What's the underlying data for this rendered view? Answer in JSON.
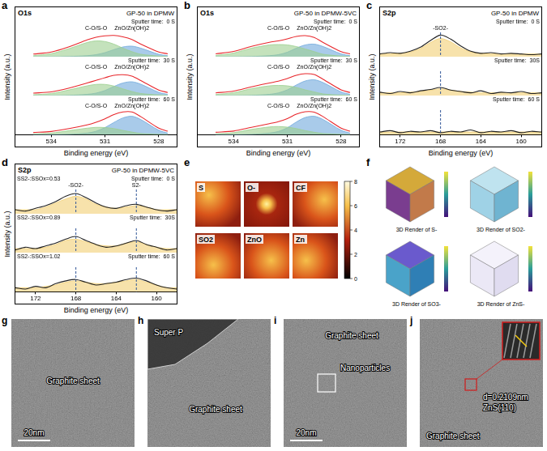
{
  "chart_data": [
    {
      "panel": "a",
      "type": "line",
      "title": "O1s",
      "subtitle": "GP-50 in DPMW",
      "x_label": "Binding energy (eV)",
      "y_label": "Intensity (a.u.)",
      "tick_labels": "x",
      "x": [
        535,
        534,
        533,
        532,
        531.5,
        531,
        530.5,
        530,
        529.5,
        529,
        528,
        527.5
      ],
      "xlim": [
        536,
        527
      ],
      "xticks": [
        534,
        531,
        528
      ],
      "spectra": [
        {
          "label": "Sputter time:  0 S",
          "ylim": [
            0,
            120
          ],
          "series": [
            {
              "name": "C-O/S-O",
              "type": "area",
              "color": "#9ccf8f",
              "values": [
                5,
                15,
                40,
                70,
                78,
                75,
                62,
                42,
                25,
                12,
                3,
                1
              ]
            },
            {
              "name": "ZnO/Zn(OH)2",
              "type": "area",
              "color": "#6fa8dc",
              "values": [
                0,
                0,
                1,
                5,
                10,
                20,
                35,
                48,
                52,
                42,
                12,
                5
              ]
            },
            {
              "type": "line",
              "color": "#e8262b",
              "values": [
                13,
                23,
                49,
                83,
                96,
                103,
                105,
                98,
                85,
                62,
                23,
                14
              ]
            }
          ]
        },
        {
          "label": "Sputter time:  30 S",
          "ylim": [
            0,
            120
          ],
          "series": [
            {
              "name": "C-O/S-O",
              "type": "area",
              "color": "#9ccf8f",
              "values": [
                4,
                10,
                28,
                48,
                55,
                55,
                47,
                33,
                20,
                10,
                3,
                1
              ]
            },
            {
              "name": "ZnO/Zn(OH)2",
              "type": "area",
              "color": "#6fa8dc",
              "values": [
                0,
                0,
                1,
                6,
                12,
                25,
                45,
                62,
                68,
                56,
                16,
                6
              ]
            },
            {
              "type": "line",
              "color": "#e8262b",
              "values": [
                12,
                18,
                37,
                62,
                75,
                88,
                100,
                103,
                96,
                74,
                27,
                15
              ]
            }
          ]
        },
        {
          "label": "Sputter time:  60 S",
          "ylim": [
            0,
            120
          ],
          "series": [
            {
              "name": "C-O/S-O",
              "type": "area",
              "color": "#9ccf8f",
              "values": [
                3,
                8,
                20,
                32,
                36,
                35,
                30,
                21,
                13,
                6,
                2,
                1
              ]
            },
            {
              "name": "ZnO/Zn(OH)2",
              "type": "area",
              "color": "#6fa8dc",
              "values": [
                0,
                0,
                2,
                8,
                17,
                35,
                60,
                82,
                90,
                74,
                22,
                8
              ]
            },
            {
              "type": "line",
              "color": "#e8262b",
              "values": [
                11,
                16,
                30,
                48,
                61,
                78,
                98,
                111,
                111,
                88,
                32,
                17
              ]
            }
          ]
        }
      ]
    },
    {
      "panel": "b",
      "type": "line",
      "title": "O1s",
      "subtitle": "GP-50 in DPMW-5VC",
      "x_label": "Binding energy (eV)",
      "y_label": "Intensity (a.u.)",
      "tick_labels": "x",
      "x": [
        535,
        534,
        533,
        532,
        531.5,
        531,
        530.5,
        530,
        529.5,
        529,
        528,
        527.5
      ],
      "xlim": [
        536,
        527
      ],
      "xticks": [
        534,
        531,
        528
      ],
      "spectra": [
        {
          "label": "Sputter time:  0 S",
          "ylim": [
            0,
            120
          ],
          "series": [
            {
              "name": "C-O/S-O",
              "type": "area",
              "color": "#9ccf8f",
              "values": [
                6,
                18,
                42,
                58,
                60,
                58,
                50,
                38,
                25,
                12,
                3,
                1
              ]
            },
            {
              "name": "ZnO/Zn(OH)2",
              "type": "area",
              "color": "#6fa8dc",
              "values": [
                0,
                0,
                1,
                5,
                10,
                22,
                42,
                58,
                62,
                50,
                14,
                5
              ]
            },
            {
              "type": "line",
              "color": "#e8262b",
              "values": [
                14,
                26,
                51,
                71,
                78,
                88,
                100,
                104,
                95,
                70,
                25,
                14
              ]
            }
          ]
        },
        {
          "label": "Sputter time:  30 S",
          "ylim": [
            0,
            120
          ],
          "series": [
            {
              "name": "C-O/S-O",
              "type": "area",
              "color": "#9ccf8f",
              "values": [
                5,
                14,
                34,
                48,
                50,
                48,
                40,
                28,
                18,
                8,
                2,
                1
              ]
            },
            {
              "name": "ZnO/Zn(OH)2",
              "type": "area",
              "color": "#6fa8dc",
              "values": [
                0,
                0,
                1,
                6,
                13,
                28,
                52,
                72,
                78,
                64,
                18,
                6
              ]
            },
            {
              "type": "line",
              "color": "#e8262b",
              "values": [
                13,
                22,
                43,
                62,
                71,
                84,
                100,
                108,
                104,
                80,
                28,
                15
              ]
            }
          ]
        },
        {
          "label": "Sputter time:  60 S",
          "ylim": [
            0,
            120
          ],
          "series": [
            {
              "name": "C-O/S-O",
              "type": "area",
              "color": "#9ccf8f",
              "values": [
                4,
                10,
                26,
                38,
                40,
                37,
                30,
                20,
                12,
                6,
                2,
                1
              ]
            },
            {
              "name": "ZnO/Zn(OH)2",
              "type": "area",
              "color": "#6fa8dc",
              "values": [
                0,
                0,
                2,
                8,
                16,
                34,
                62,
                84,
                90,
                74,
                22,
                8
              ]
            },
            {
              "type": "line",
              "color": "#e8262b",
              "values": [
                12,
                18,
                36,
                54,
                64,
                79,
                100,
                112,
                110,
                88,
                32,
                17
              ]
            }
          ]
        }
      ]
    },
    {
      "panel": "c",
      "type": "line",
      "title": "S2p",
      "subtitle": "GP-50 in DPMW",
      "x_label": "Binding energy (eV)",
      "y_label": "Intensity (a.u.)",
      "tick_labels": "x",
      "x": [
        174,
        173,
        172,
        171,
        170,
        169,
        168,
        167,
        166,
        165,
        164,
        163,
        162,
        161,
        160,
        159,
        158
      ],
      "xlim": [
        174,
        158
      ],
      "xticks": [
        172,
        168,
        164,
        160
      ],
      "markers": [
        {
          "x": 168,
          "label": "-SO2-"
        }
      ],
      "spectra": [
        {
          "label": "Sputter time:  0 S",
          "ylim": [
            6,
            42
          ],
          "series": [
            {
              "type": "area",
              "color": "#f2cf73",
              "values": [
                10,
                10,
                11,
                13,
                18,
                27,
                33,
                28,
                19,
                13,
                11,
                10,
                10,
                10,
                10,
                10,
                10
              ]
            },
            {
              "type": "line",
              "color": "#222222",
              "values": [
                10,
                12,
                11,
                14,
                20,
                30,
                38,
                32,
                22,
                14,
                11,
                12,
                10,
                11,
                10,
                9,
                10
              ]
            }
          ]
        },
        {
          "label": "Sputter time:  30S",
          "ylim": [
            6,
            42
          ],
          "series": [
            {
              "type": "area",
              "color": "#f2cf73",
              "values": [
                10,
                10,
                10,
                11,
                12,
                14,
                16,
                14,
                12,
                11,
                10,
                10,
                10,
                10,
                10,
                10,
                10
              ]
            },
            {
              "type": "line",
              "color": "#222222",
              "values": [
                11,
                9,
                12,
                10,
                13,
                15,
                18,
                14,
                12,
                10,
                13,
                9,
                11,
                10,
                12,
                9,
                10
              ]
            }
          ]
        },
        {
          "label": "Sputter time:  60 S",
          "ylim": [
            6,
            42
          ],
          "series": [
            {
              "type": "area",
              "color": "#f2cf73",
              "values": [
                10,
                10,
                10,
                10,
                10,
                10,
                10,
                10,
                10,
                10,
                10,
                10,
                10,
                10,
                10,
                10,
                10
              ]
            },
            {
              "type": "line",
              "color": "#222222",
              "values": [
                10,
                12,
                9,
                11,
                10,
                12,
                9,
                11,
                10,
                13,
                9,
                11,
                10,
                12,
                9,
                11,
                10
              ]
            }
          ]
        }
      ]
    },
    {
      "panel": "d",
      "type": "line",
      "title": "S2p",
      "subtitle": "GP-50 in DPMW-5VC",
      "x_label": "Binding energy (eV)",
      "y_label": "Intensity (a.u.)",
      "tick_labels": "x",
      "x": [
        174,
        173,
        172,
        171,
        170,
        169,
        168,
        167,
        166,
        165,
        164,
        163,
        162,
        161,
        160,
        159,
        158
      ],
      "xlim": [
        174,
        158
      ],
      "xticks": [
        172,
        168,
        164,
        160
      ],
      "markers": [
        {
          "x": 168,
          "label": "-SO2-"
        },
        {
          "x": 162,
          "label": "S2-"
        }
      ],
      "spectra": [
        {
          "label": "Sputter time:  0 S",
          "annotation": "SS2-:SSOx=0.53",
          "ylim": [
            9,
            27
          ],
          "series": [
            {
              "type": "area",
              "color": "#f2cf73",
              "values": [
                12,
                12,
                12,
                14,
                17,
                20,
                22,
                20,
                16,
                14,
                13,
                14,
                15,
                14,
                12,
                12,
                12
              ]
            },
            {
              "type": "line",
              "color": "#222222",
              "values": [
                12,
                11,
                13,
                15,
                18,
                22,
                24,
                21,
                17,
                14,
                13,
                15,
                16,
                14,
                12,
                11,
                12
              ]
            }
          ]
        },
        {
          "label": "Sputter time:  30S",
          "annotation": "SS2-:SSOx=0.89",
          "ylim": [
            9,
            27
          ],
          "series": [
            {
              "type": "area",
              "color": "#f2cf73",
              "values": [
                12,
                12,
                12,
                13,
                15,
                18,
                19,
                17,
                15,
                14,
                14,
                16,
                17,
                15,
                13,
                12,
                12
              ]
            },
            {
              "type": "line",
              "color": "#222222",
              "values": [
                11,
                13,
                12,
                14,
                16,
                19,
                21,
                18,
                15,
                13,
                14,
                16,
                18,
                15,
                13,
                11,
                12
              ]
            }
          ]
        },
        {
          "label": "Sputter time:  60 S",
          "annotation": "SS2-:SSOx=1.02",
          "ylim": [
            9,
            27
          ],
          "series": [
            {
              "type": "area",
              "color": "#f2cf73",
              "values": [
                12,
                12,
                12,
                13,
                14,
                16,
                17,
                16,
                15,
                15,
                16,
                17,
                18,
                16,
                14,
                12,
                12
              ]
            },
            {
              "type": "line",
              "color": "#222222",
              "values": [
                12,
                11,
                13,
                12,
                15,
                17,
                18,
                16,
                14,
                15,
                16,
                18,
                19,
                17,
                14,
                12,
                11
              ]
            }
          ]
        }
      ]
    }
  ],
  "maps": {
    "panel": "e",
    "labels": [
      "S",
      "O-",
      "CF",
      "SO2",
      "ZnO",
      "Zn"
    ],
    "colorbar": {
      "range": [
        0,
        8
      ],
      "ticks": [
        0,
        2,
        4,
        6,
        8
      ]
    }
  },
  "renders": {
    "panel": "f",
    "captions": [
      "3D Render of S-",
      "3D Render of SO2-",
      "3D Render of SO3-",
      "3D Render of ZnS-"
    ]
  },
  "tem": [
    {
      "panel": "g",
      "labels": [
        "Graphite sheet"
      ],
      "scale_bar": "20nm"
    },
    {
      "panel": "h",
      "labels": [
        "Super P",
        "Graphite sheet"
      ]
    },
    {
      "panel": "i",
      "labels": [
        "Graphite sheet",
        "Nanoparticles"
      ],
      "scale_bar": "20nm"
    },
    {
      "panel": "j",
      "labels": [
        "Graphite sheet"
      ],
      "annotation": [
        "d=0.2109nm",
        "ZnS(110)"
      ]
    }
  ]
}
